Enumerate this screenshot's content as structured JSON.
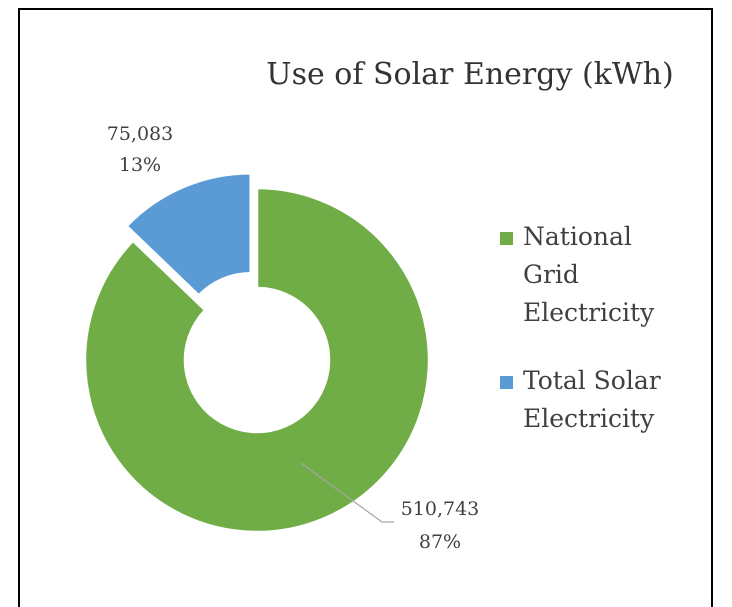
{
  "chart_data": {
    "type": "donut",
    "title": "Use of Solar Energy (kWh)",
    "categories": [
      "National Grid Electricity",
      "Total Solar Electricity"
    ],
    "values": [
      510743,
      75083
    ],
    "value_labels": [
      "510,743",
      "75,083"
    ],
    "percents": [
      87,
      13
    ],
    "percent_labels": [
      "87%",
      "13%"
    ],
    "colors": [
      "#70ad47",
      "#5b9bd5"
    ],
    "exploded": [
      false,
      true
    ],
    "legend": "right"
  }
}
